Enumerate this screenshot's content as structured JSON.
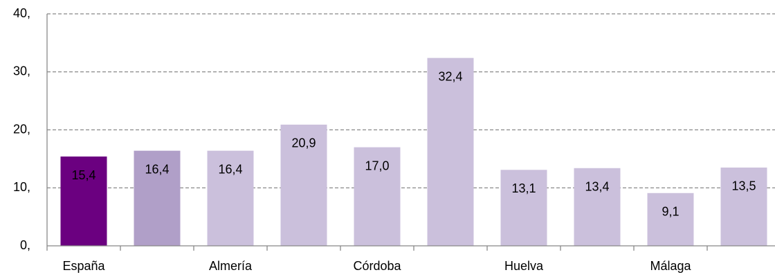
{
  "chart_data": {
    "type": "bar",
    "categories": [
      "España",
      null,
      "Almería",
      null,
      "Córdoba",
      null,
      "Huelva",
      null,
      "Málaga",
      null
    ],
    "values": [
      15.4,
      16.4,
      16.4,
      20.9,
      17.0,
      32.4,
      13.1,
      13.4,
      9.1,
      13.5
    ],
    "value_labels": [
      "15,4",
      "16,4",
      "16,4",
      "20,9",
      "17,0",
      "32,4",
      "13,1",
      "13,4",
      "9,1",
      "13,5"
    ],
    "colors": [
      "#6b0080",
      "#b09fc8",
      "#cbc0dc",
      "#cbc0dc",
      "#cbc0dc",
      "#cbc0dc",
      "#cbc0dc",
      "#cbc0dc",
      "#cbc0dc",
      "#cbc0dc"
    ],
    "ylim": [
      0,
      40
    ],
    "yticks": [
      {
        "value": 0,
        "label": "0,"
      },
      {
        "value": 10,
        "label": "10,"
      },
      {
        "value": 20,
        "label": "20,"
      },
      {
        "value": 30,
        "label": "30,"
      },
      {
        "value": 40,
        "label": "40,"
      }
    ],
    "grid": true
  }
}
